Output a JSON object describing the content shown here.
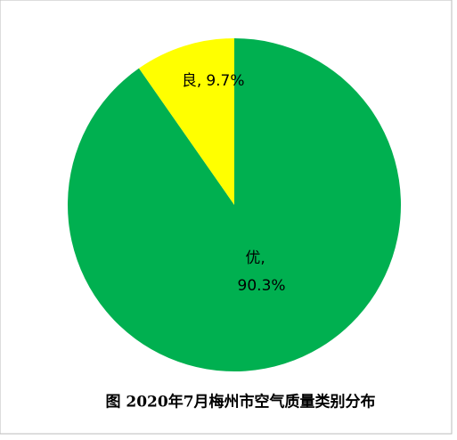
{
  "chart_data": {
    "type": "pie",
    "title": "图 2020年7月梅州市空气质量类别分布",
    "categories": [
      "优",
      "良"
    ],
    "values": [
      90.3,
      9.7
    ],
    "value_labels": [
      "90.3%",
      "9.7%"
    ],
    "label_separator": ",",
    "colors": [
      "#00b050",
      "#ffff00"
    ]
  }
}
